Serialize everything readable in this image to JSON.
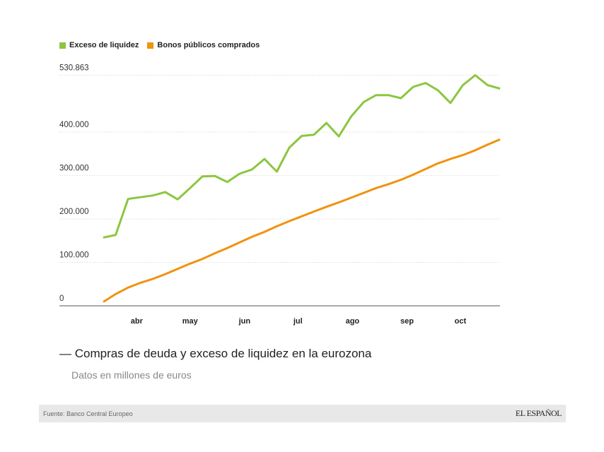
{
  "chart_data": {
    "type": "line",
    "title": "Compras de deuda y exceso de liquidez en la eurozona",
    "subtitle": "Datos en millones de euros",
    "xlabel": "",
    "ylabel": "",
    "ylim": [
      0,
      530863
    ],
    "y_ticks": [
      "0",
      "100.000",
      "200.000",
      "300.000",
      "400.000",
      "530.863"
    ],
    "y_tick_values": [
      0,
      100000,
      200000,
      300000,
      400000,
      530863
    ],
    "x_tick_labels": [
      "abr",
      "may",
      "jun",
      "jul",
      "ago",
      "sep",
      "oct"
    ],
    "grid": true,
    "legend_position": "top-left",
    "series": [
      {
        "name": "Exceso de liquidez",
        "color": "#8cc63f",
        "values": [
          157000,
          163000,
          246000,
          250000,
          254000,
          262000,
          245000,
          271000,
          298000,
          299000,
          285000,
          304000,
          314000,
          338000,
          309000,
          364000,
          391000,
          394000,
          421000,
          390000,
          436000,
          469000,
          485000,
          485000,
          478000,
          504000,
          513000,
          496000,
          467000,
          508000,
          530863,
          508000,
          500000
        ]
      },
      {
        "name": "Bonos públicos comprados",
        "color": "#f0930f",
        "values": [
          9000,
          27000,
          42000,
          53000,
          62000,
          73000,
          85000,
          97000,
          108000,
          121000,
          133000,
          146000,
          159000,
          170000,
          183000,
          195000,
          206000,
          217000,
          228000,
          238000,
          249000,
          260000,
          271000,
          280000,
          290000,
          302000,
          315000,
          328000,
          338000,
          347000,
          358000,
          371000,
          383000
        ]
      }
    ]
  },
  "footer": {
    "source": "Fuente: Banco Central Europeo",
    "logo": "EL ESPAÑOL"
  }
}
